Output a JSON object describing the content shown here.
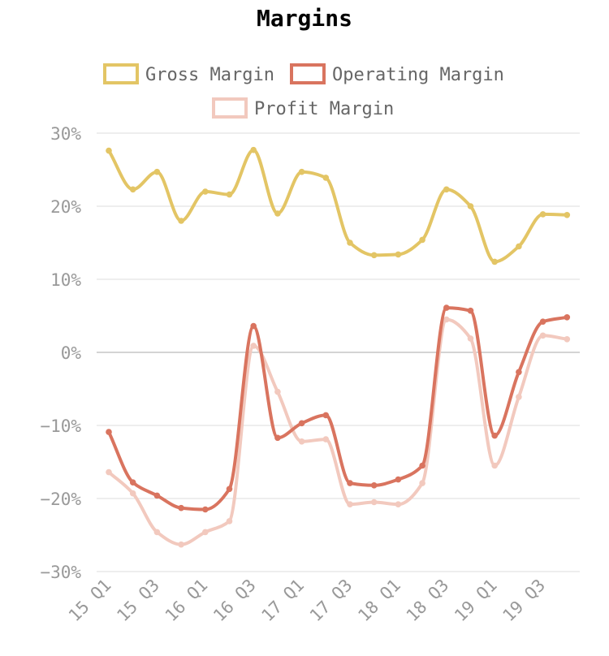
{
  "chart_data": {
    "type": "line",
    "title": "Margins",
    "xlabel": "",
    "ylabel": "",
    "ylim": [
      -30,
      30
    ],
    "yticks": [
      30,
      20,
      10,
      0,
      -10,
      -20,
      -30
    ],
    "ytick_labels": [
      "30%",
      "20%",
      "10%",
      "0%",
      "−10%",
      "−20%",
      "−30%"
    ],
    "categories": [
      "15 Q1",
      "15 Q2",
      "15 Q3",
      "15 Q4",
      "16 Q1",
      "16 Q2",
      "16 Q3",
      "16 Q4",
      "17 Q1",
      "17 Q2",
      "17 Q3",
      "17 Q4",
      "18 Q1",
      "18 Q2",
      "18 Q3",
      "18 Q4",
      "19 Q1",
      "19 Q2",
      "19 Q3",
      "19 Q4"
    ],
    "tick_labels": [
      "15 Q1",
      "15 Q3",
      "16 Q1",
      "16 Q3",
      "17 Q1",
      "17 Q3",
      "18 Q1",
      "18 Q3",
      "19 Q1",
      "19 Q3"
    ],
    "series": [
      {
        "name": "Gross Margin",
        "color": "#e3c565",
        "values": [
          27.6,
          22.3,
          24.7,
          18.0,
          22.0,
          21.6,
          27.7,
          19.0,
          24.7,
          23.9,
          15.0,
          13.3,
          13.4,
          15.4,
          22.3,
          20.0,
          12.4,
          14.5,
          18.9,
          18.8
        ]
      },
      {
        "name": "Operating Margin",
        "color": "#d9745f",
        "values": [
          -10.9,
          -17.8,
          -19.6,
          -21.3,
          -21.5,
          -18.7,
          3.6,
          -11.7,
          -9.7,
          -8.6,
          -17.9,
          -18.2,
          -17.4,
          -15.5,
          6.1,
          5.7,
          -11.4,
          -2.7,
          4.2,
          4.8
        ]
      },
      {
        "name": "Profit Margin",
        "color": "#f2c9be",
        "values": [
          -16.4,
          -19.3,
          -24.6,
          -26.3,
          -24.6,
          -23.1,
          0.9,
          -5.4,
          -12.2,
          -11.9,
          -20.8,
          -20.5,
          -20.8,
          -17.9,
          4.5,
          1.9,
          -15.5,
          -6.1,
          2.3,
          1.8
        ]
      }
    ],
    "legend": {
      "position": "top-center"
    },
    "grid": true
  }
}
